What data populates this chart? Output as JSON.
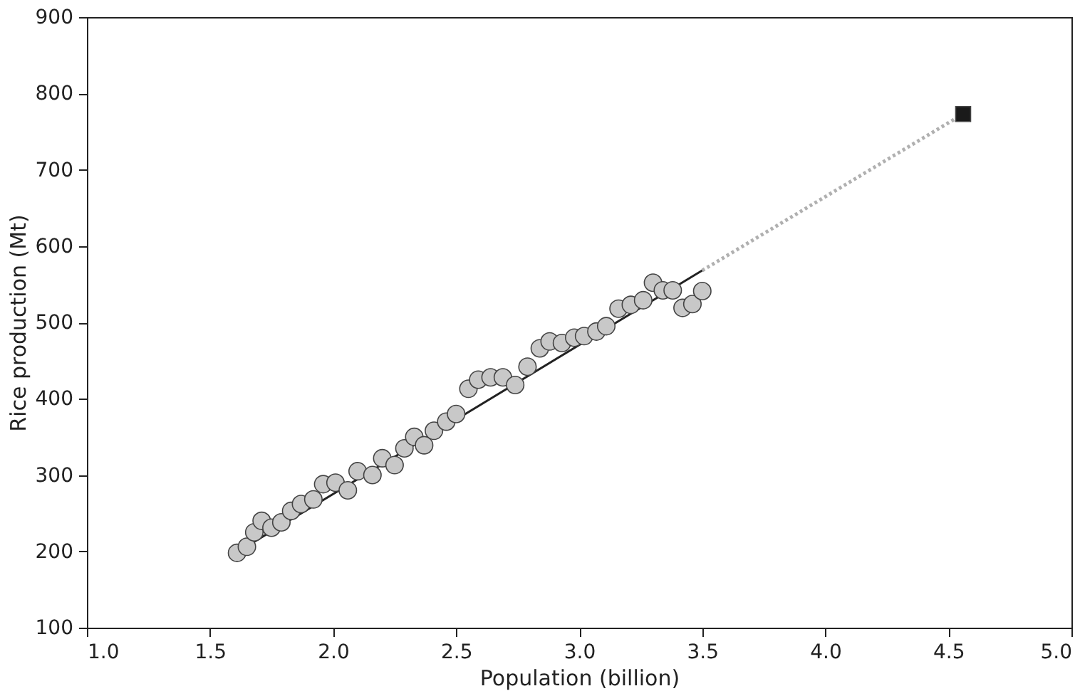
{
  "chart_data": {
    "type": "scatter",
    "xlabel": "Population (billion)",
    "ylabel": "Rice production (Mt)",
    "xlim": [
      1.0,
      5.0
    ],
    "ylim": [
      100,
      900
    ],
    "xticks": [
      {
        "value": 1.0,
        "label": "1.0"
      },
      {
        "value": 1.5,
        "label": "1.5"
      },
      {
        "value": 2.0,
        "label": "2.0"
      },
      {
        "value": 2.5,
        "label": "2.5"
      },
      {
        "value": 3.0,
        "label": "3.0"
      },
      {
        "value": 3.5,
        "label": "3.5"
      },
      {
        "value": 4.0,
        "label": "4.0"
      },
      {
        "value": 4.5,
        "label": "4.5"
      },
      {
        "value": 5.0,
        "label": "5.0"
      }
    ],
    "yticks": [
      100,
      200,
      300,
      400,
      500,
      600,
      700,
      800,
      900
    ],
    "grid": false,
    "series": [
      {
        "type": "line",
        "color": "#222222",
        "line_style": "solid",
        "marker": "none",
        "x": [
          1.6,
          3.5
        ],
        "values": [
          197,
          568
        ]
      },
      {
        "type": "line",
        "color": "#b0b0b0",
        "line_style": "dotted",
        "marker": "none",
        "x": [
          3.5,
          4.56
        ],
        "values": [
          568,
          773
        ]
      },
      {
        "color": "#c8c8c8",
        "marker": "circle",
        "x": [
          1.61,
          1.65,
          1.68,
          1.71,
          1.75,
          1.79,
          1.83,
          1.87,
          1.92,
          1.96,
          2.01,
          2.06,
          2.1,
          2.16,
          2.2,
          2.25,
          2.29,
          2.33,
          2.37,
          2.41,
          2.46,
          2.5,
          2.55,
          2.59,
          2.64,
          2.69,
          2.74,
          2.79,
          2.84,
          2.88,
          2.93,
          2.98,
          3.02,
          3.07,
          3.11,
          3.16,
          3.21,
          3.26,
          3.3,
          3.34,
          3.38,
          3.42,
          3.46,
          3.5
        ],
        "values": [
          198,
          206,
          225,
          240,
          231,
          238,
          253,
          262,
          268,
          288,
          290,
          280,
          305,
          300,
          322,
          313,
          335,
          350,
          339,
          358,
          370,
          380,
          413,
          425,
          428,
          428,
          418,
          442,
          466,
          475,
          473,
          480,
          482,
          488,
          495,
          518,
          523,
          529,
          552,
          542,
          542,
          519,
          524,
          541
        ]
      },
      {
        "color": "#1a1a1a",
        "marker": "square",
        "x": [
          4.56
        ],
        "values": [
          773
        ]
      }
    ]
  }
}
